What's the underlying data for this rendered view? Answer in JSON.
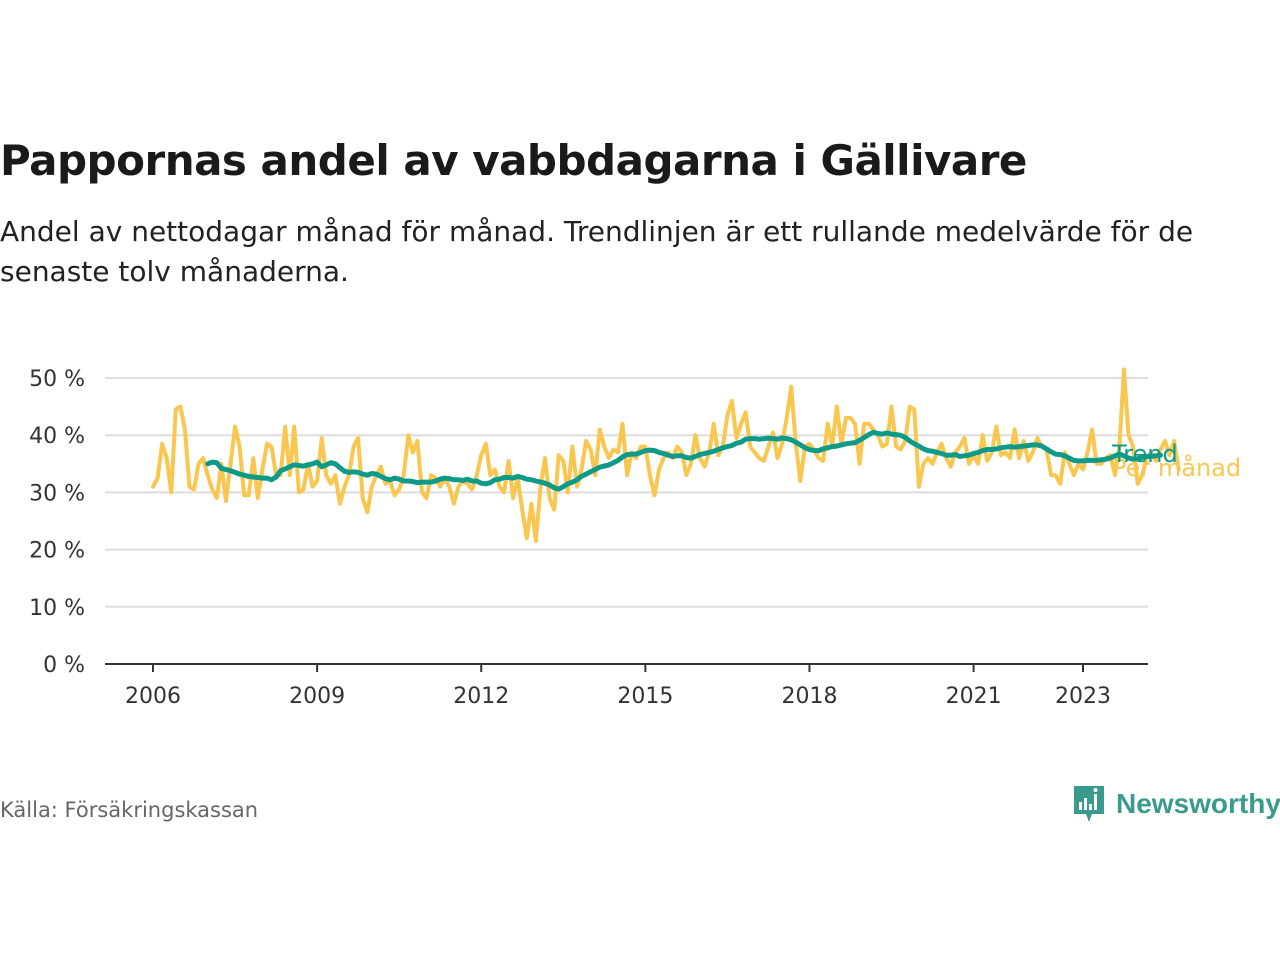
{
  "title": "Pappornas andel av vabbdagarna i Gällivare",
  "subtitle": "Andel av nettodagar månad för månad. Trendlinjen är ett rullande medelvärde för de senaste tolv månaderna.",
  "source": "Källa: Försäkringskassan",
  "brand": "Newsworthy",
  "colors": {
    "monthly": "#f9c74f",
    "trend": "#0f9a87",
    "grid": "#dddddd",
    "axis": "#333333",
    "brand": "#3a9a8e"
  },
  "chart_data": {
    "type": "line",
    "ylim": [
      0,
      50
    ],
    "y_ticks": [
      0,
      10,
      20,
      30,
      40,
      50
    ],
    "y_tick_labels": [
      "0 %",
      "10 %",
      "20 %",
      "30 %",
      "40 %",
      "50 %"
    ],
    "x_ticks": [
      2006,
      2009,
      2012,
      2015,
      2018,
      2021,
      2023
    ],
    "x_tick_labels": [
      "2006",
      "2009",
      "2012",
      "2015",
      "2018",
      "2021",
      "2023"
    ],
    "x_range": [
      2005.1,
      2024.4
    ],
    "grid": "horizontal",
    "series": [
      {
        "name": "Per månad",
        "color_key": "monthly",
        "x_start": 2006.0,
        "x_step": 0.08333,
        "values": [
          31,
          32.5,
          38.5,
          36,
          30,
          44.5,
          45,
          41,
          31,
          30.5,
          35,
          36,
          33,
          30.5,
          29,
          35,
          28.5,
          35,
          41.5,
          38,
          29.5,
          29.5,
          36,
          29,
          34,
          38.5,
          38,
          33,
          33,
          41.5,
          33,
          41.5,
          30,
          30.5,
          35,
          31,
          32,
          39.5,
          33,
          31.5,
          33,
          28,
          31,
          33,
          38,
          39.5,
          29,
          26.5,
          31,
          33,
          34.5,
          31.5,
          32,
          29.5,
          30.5,
          33,
          40,
          37,
          39,
          30,
          29,
          33,
          32.5,
          31,
          32.5,
          31,
          28,
          31,
          32,
          31.5,
          30.5,
          33,
          36.5,
          38.5,
          33,
          34,
          31,
          30,
          35.5,
          29,
          32.5,
          27,
          22,
          28,
          21.5,
          31,
          36,
          29,
          27,
          36.5,
          35.5,
          30,
          38,
          31,
          34,
          39,
          37.5,
          33,
          41,
          38,
          36,
          37.5,
          37,
          42,
          33,
          37,
          36,
          38,
          38,
          33,
          29.5,
          34,
          36,
          37,
          36,
          38,
          37,
          33,
          35,
          40,
          36,
          34.5,
          37,
          42,
          36.5,
          38,
          43.5,
          46,
          39.5,
          42,
          44,
          38,
          37,
          36,
          35.5,
          38,
          40.5,
          36,
          38.5,
          43,
          48.5,
          38.5,
          32,
          38,
          38.5,
          37.5,
          36,
          35.5,
          42,
          38,
          45,
          38.5,
          43,
          43,
          42,
          35,
          42,
          42,
          41,
          40,
          38,
          38.5,
          45,
          38,
          37.5,
          39,
          45,
          44.5,
          31,
          35,
          36,
          35,
          37,
          38.5,
          36,
          34.5,
          37,
          38,
          39.5,
          35,
          36.5,
          35,
          40,
          35.5,
          37,
          41.5,
          36.5,
          37,
          36,
          41,
          36,
          39,
          35.5,
          37,
          39.5,
          38,
          37.5,
          33,
          33,
          31.5,
          37,
          35,
          33,
          35,
          34,
          37,
          41,
          35,
          35,
          36,
          36.5,
          33,
          38,
          51.5,
          40,
          38,
          31.5,
          33,
          36,
          37,
          35.5,
          37.5,
          39,
          36.5,
          39,
          34
        ]
      },
      {
        "name": "Trend",
        "color_key": "trend",
        "x_start": 2007.0,
        "x_step": 0.08333,
        "values": [
          35,
          35.3,
          35.2,
          34.2,
          34,
          33.8,
          33.5,
          33.2,
          33,
          32.8,
          32.7,
          32.6,
          32.5,
          32.5,
          32.2,
          32.7,
          33.8,
          34.1,
          34.5,
          34.8,
          34.7,
          34.6,
          34.8,
          35,
          35.3,
          34.5,
          34.8,
          35.2,
          35,
          34.3,
          33.7,
          33.5,
          33.6,
          33.5,
          33.2,
          33,
          33.3,
          33.2,
          32.8,
          32.4,
          32.2,
          32.5,
          32.3,
          32,
          32,
          31.9,
          31.7,
          31.8,
          31.8,
          31.8,
          32,
          32.3,
          32.5,
          32.4,
          32.2,
          32.2,
          32.1,
          32.3,
          32,
          32,
          31.6,
          31.5,
          31.7,
          32.2,
          32.3,
          32.6,
          32.6,
          32.5,
          32.8,
          32.6,
          32.3,
          32.2,
          32,
          31.8,
          31.6,
          31.3,
          30.8,
          30.6,
          31,
          31.5,
          31.8,
          32.2,
          32.8,
          33.2,
          33.6,
          34,
          34.4,
          34.6,
          34.8,
          35.2,
          35.6,
          36.2,
          36.6,
          36.7,
          36.7,
          37,
          37.3,
          37.4,
          37.3,
          37,
          36.8,
          36.5,
          36.3,
          36.4,
          36.4,
          36.1,
          36,
          36.3,
          36.6,
          36.8,
          37,
          37.2,
          37.5,
          37.8,
          38,
          38.2,
          38.6,
          38.8,
          39.3,
          39.4,
          39.4,
          39.3,
          39.4,
          39.5,
          39.4,
          39.3,
          39.5,
          39.4,
          39.2,
          38.8,
          38.3,
          37.8,
          37.5,
          37.3,
          37.3,
          37.6,
          37.8,
          38,
          38.1,
          38.3,
          38.5,
          38.6,
          38.7,
          39.1,
          39.6,
          40.1,
          40.5,
          40.3,
          40.2,
          40.4,
          40.2,
          40.1,
          40,
          39.6,
          39,
          38.5,
          38.1,
          37.6,
          37.3,
          37.2,
          37,
          36.8,
          36.5,
          36.5,
          36.6,
          36.3,
          36.4,
          36.5,
          36.8,
          37,
          37.3,
          37.5,
          37.5,
          37.6,
          37.8,
          37.9,
          38,
          37.9,
          38,
          38.1,
          38.2,
          38.3,
          38.3,
          38.1,
          37.6,
          37.1,
          36.7,
          36.6,
          36.4,
          36,
          35.6,
          35.5,
          35.5,
          35.6,
          35.6,
          35.6,
          35.7,
          35.8,
          36,
          36.4,
          36.7,
          36.4,
          36,
          35.8,
          35.9,
          36.1,
          36.3,
          36.3,
          36.4,
          36.5
        ]
      }
    ]
  }
}
